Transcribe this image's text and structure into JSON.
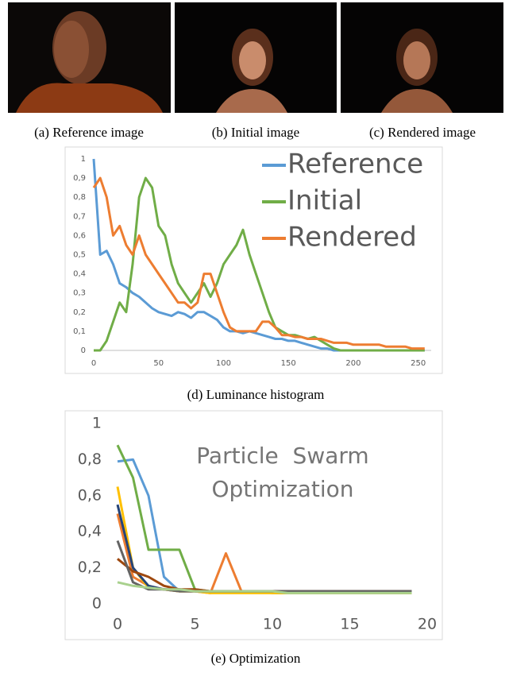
{
  "captions": [
    "(a) Reference image",
    "(b) Initial image",
    "(c) Rendered image",
    "(d) Luminance histogram",
    "(e) Optimization"
  ],
  "chart_data": [
    {
      "type": "line",
      "x": [
        0,
        5,
        10,
        15,
        20,
        25,
        30,
        35,
        40,
        45,
        50,
        55,
        60,
        65,
        70,
        75,
        80,
        85,
        90,
        95,
        100,
        105,
        110,
        115,
        120,
        125,
        130,
        135,
        140,
        145,
        150,
        155,
        160,
        165,
        170,
        175,
        180,
        185,
        190,
        195,
        200,
        205,
        210,
        215,
        220,
        225,
        230,
        235,
        240,
        245,
        250,
        255
      ],
      "series": [
        {
          "name": "Reference",
          "color": "#5b9bd5",
          "values": [
            1,
            0.5,
            0.52,
            0.45,
            0.35,
            0.33,
            0.3,
            0.28,
            0.25,
            0.22,
            0.2,
            0.19,
            0.18,
            0.2,
            0.19,
            0.17,
            0.2,
            0.2,
            0.18,
            0.16,
            0.12,
            0.1,
            0.1,
            0.09,
            0.1,
            0.09,
            0.08,
            0.07,
            0.06,
            0.06,
            0.05,
            0.05,
            0.04,
            0.03,
            0.02,
            0.01,
            0.01,
            0,
            0,
            0,
            0,
            0,
            0,
            0,
            0,
            0,
            0,
            0,
            0,
            0,
            0,
            0
          ]
        },
        {
          "name": "Initial",
          "color": "#70ad47",
          "values": [
            0,
            0,
            0.05,
            0.15,
            0.25,
            0.2,
            0.45,
            0.8,
            0.9,
            0.85,
            0.65,
            0.6,
            0.45,
            0.35,
            0.3,
            0.25,
            0.3,
            0.35,
            0.28,
            0.35,
            0.45,
            0.5,
            0.55,
            0.63,
            0.5,
            0.4,
            0.3,
            0.2,
            0.12,
            0.1,
            0.08,
            0.08,
            0.07,
            0.06,
            0.07,
            0.05,
            0.03,
            0.01,
            0,
            0,
            0,
            0,
            0,
            0,
            0,
            0,
            0,
            0,
            0,
            0,
            0,
            0
          ]
        },
        {
          "name": "Rendered",
          "color": "#ed7d31",
          "values": [
            0.85,
            0.9,
            0.8,
            0.6,
            0.65,
            0.55,
            0.5,
            0.6,
            0.5,
            0.45,
            0.4,
            0.35,
            0.3,
            0.25,
            0.25,
            0.22,
            0.25,
            0.4,
            0.4,
            0.3,
            0.2,
            0.12,
            0.1,
            0.1,
            0.1,
            0.1,
            0.15,
            0.15,
            0.12,
            0.08,
            0.08,
            0.07,
            0.07,
            0.06,
            0.06,
            0.06,
            0.05,
            0.04,
            0.04,
            0.04,
            0.03,
            0.03,
            0.03,
            0.03,
            0.03,
            0.02,
            0.02,
            0.02,
            0.02,
            0.01,
            0.01,
            0.01
          ]
        }
      ],
      "xlim": [
        0,
        260
      ],
      "ylim": [
        0,
        1
      ],
      "xticks": [
        0,
        50,
        100,
        150,
        200,
        250
      ],
      "yticks": [
        0,
        {
          "value": 0.1,
          "label": "0,1"
        },
        {
          "value": 0.2,
          "label": "0,2"
        },
        {
          "value": 0.3,
          "label": "0,3"
        },
        {
          "value": 0.4,
          "label": "0,4"
        },
        {
          "value": 0.5,
          "label": "0,5"
        },
        {
          "value": 0.6,
          "label": "0,6"
        },
        {
          "value": 0.7,
          "label": "0,7"
        },
        {
          "value": 0.8,
          "label": "0,8"
        },
        {
          "value": 0.9,
          "label": "0,9"
        },
        1
      ],
      "grid": false,
      "legend": "upper right"
    },
    {
      "type": "line",
      "annotation": [
        "Particle  Swarm",
        "Optimization"
      ],
      "x": [
        0,
        1,
        2,
        3,
        4,
        5,
        6,
        7,
        8,
        9,
        10,
        11,
        12,
        13,
        14,
        15,
        16,
        17,
        18,
        19
      ],
      "series": [
        {
          "color": "#5b9bd5",
          "values": [
            0.79,
            0.8,
            0.6,
            0.15,
            0.07,
            0.07,
            0.07,
            0.07,
            0.07,
            0.07,
            0.07,
            0.07,
            0.07,
            0.07,
            0.07,
            0.07,
            0.07,
            0.07,
            0.07,
            0.07
          ]
        },
        {
          "color": "#70ad47",
          "values": [
            0.88,
            0.7,
            0.3,
            0.3,
            0.3,
            0.08,
            0.07,
            0.07,
            0.07,
            0.07,
            0.06,
            0.06,
            0.06,
            0.06,
            0.06,
            0.06,
            0.06,
            0.06,
            0.06,
            0.06
          ]
        },
        {
          "color": "#ed7d31",
          "values": [
            0.5,
            0.15,
            0.1,
            0.08,
            0.07,
            0.07,
            0.06,
            0.28,
            0.07,
            0.07,
            0.07,
            0.07,
            0.07,
            0.06,
            0.06,
            0.06,
            0.06,
            0.06,
            0.06,
            0.06
          ]
        },
        {
          "color": "#ffc000",
          "values": [
            0.65,
            0.2,
            0.09,
            0.08,
            0.07,
            0.07,
            0.06,
            0.06,
            0.06,
            0.06,
            0.06,
            0.06,
            0.06,
            0.06,
            0.06,
            0.06,
            0.06,
            0.06,
            0.06,
            0.06
          ]
        },
        {
          "color": "#264478",
          "values": [
            0.55,
            0.2,
            0.1,
            0.08,
            0.08,
            0.07,
            0.07,
            0.07,
            0.07,
            0.07,
            0.07,
            0.07,
            0.07,
            0.07,
            0.07,
            0.07,
            0.07,
            0.07,
            0.07,
            0.07
          ]
        },
        {
          "color": "#9e480e",
          "values": [
            0.25,
            0.18,
            0.15,
            0.1,
            0.08,
            0.08,
            0.07,
            0.07,
            0.07,
            0.07,
            0.07,
            0.07,
            0.07,
            0.07,
            0.07,
            0.07,
            0.07,
            0.07,
            0.07,
            0.07
          ]
        },
        {
          "color": "#636363",
          "values": [
            0.35,
            0.12,
            0.08,
            0.08,
            0.07,
            0.07,
            0.07,
            0.07,
            0.07,
            0.07,
            0.07,
            0.07,
            0.07,
            0.07,
            0.07,
            0.07,
            0.07,
            0.07,
            0.07,
            0.07
          ]
        },
        {
          "color": "#a9d18e",
          "values": [
            0.12,
            0.1,
            0.09,
            0.08,
            0.08,
            0.07,
            0.07,
            0.07,
            0.07,
            0.07,
            0.07,
            0.06,
            0.06,
            0.06,
            0.06,
            0.06,
            0.06,
            0.06,
            0.06,
            0.06
          ]
        }
      ],
      "xlim": [
        0,
        20
      ],
      "ylim": [
        0,
        1
      ],
      "xticks": [
        0,
        5,
        10,
        15,
        20
      ],
      "yticks": [
        0,
        {
          "value": 0.2,
          "label": "0,2"
        },
        {
          "value": 0.4,
          "label": "0,4"
        },
        {
          "value": 0.6,
          "label": "0,6"
        },
        {
          "value": 0.8,
          "label": "0,8"
        },
        1
      ],
      "grid": false
    }
  ]
}
